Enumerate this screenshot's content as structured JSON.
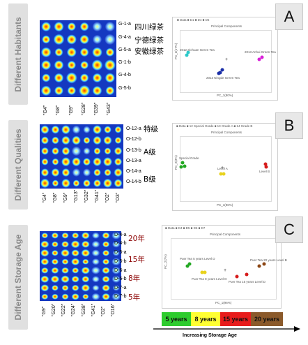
{
  "panels": [
    {
      "side_label": "Different Habitants",
      "badge": "A",
      "rows": [
        "G-1-a",
        "G-4-a",
        "G-5-a",
        "G-1-b",
        "G-4-b",
        "G-5-b"
      ],
      "cols": [
        "\"G4\"",
        "\"G8\"",
        "\"G9\"",
        "\"G28\"",
        "\"G39\"",
        "\"G43\""
      ],
      "cn_labels": [
        "四川绿茶",
        "宁德绿茶",
        "安徽绿茶"
      ],
      "pca_title": "Principal Components",
      "pca_xlabel": "PC_1(80%)",
      "pca_ylabel": "PC_2(17%)",
      "legend": "■ Data ■ D1 ■ D4 ■ D5",
      "point_labels": [
        "2012 Sichuan Green Tea",
        "2013 Ningde Green Tea",
        "2013 Anhui Green Tea"
      ]
    },
    {
      "side_label": "Different Qualities",
      "badge": "B",
      "rows": [
        "O-12-a",
        "O-12-b",
        "O-13-b",
        "O-13-a",
        "O-14-a",
        "O-14-b"
      ],
      "cols": [
        "\"G4\"",
        "\"G8\"",
        "\"G9\"",
        "\"G13\"",
        "\"G32\"",
        "\"G41\"",
        "\"O2\"",
        "\"O3\""
      ],
      "cn_labels": [
        "特级",
        "A级",
        "B级"
      ],
      "pca_title": "Principal Components",
      "pca_xlabel": "PC_1(96%)",
      "pca_ylabel": "PC_2(3%)",
      "legend": "■ Data ■ 12 Special Grade ■ 13 Grade A ■ 14 Grade B",
      "point_labels": [
        "Special Grade",
        "Level A",
        "Level B"
      ]
    },
    {
      "side_label": "Different Storage Age",
      "badge": "C",
      "rows": [
        "D-4-a",
        "D-4-b",
        "D-5-a",
        "D-5-b",
        "D-6-a",
        "D-6-b",
        "D-7-a",
        "D-7-b"
      ],
      "cols": [
        "\"G9\"",
        "\"G20\"",
        "\"G22\"",
        "\"G24\"",
        "\"G38\"",
        "\"G41\"",
        "\"O2\"",
        "\"O16\""
      ],
      "cn_labels": [
        "20年",
        "15年",
        "8年",
        "5年"
      ],
      "pca_title": "Principal Components",
      "pca_xlabel": "PC_1(96%)",
      "pca_ylabel": "PC_2(7%)",
      "legend": "■ Data ■ D4 ■ D5 ■ D6 ■ D7",
      "point_labels": [
        "Puer Tea 5 years Level D",
        "Puer Tea 8 years Level D",
        "Puer Tea 15 years Level D",
        "Puer Tea 20 years Level B"
      ]
    }
  ],
  "storage_boxes": [
    {
      "label": "5 years",
      "color": "#2ecc2e"
    },
    {
      "label": "8 years",
      "color": "#ffff33"
    },
    {
      "label": "15 years",
      "color": "#e81c1c"
    },
    {
      "label": "20 years",
      "color": "#8b5a2b"
    }
  ],
  "axis_caption": "Increasing Storage Age"
}
